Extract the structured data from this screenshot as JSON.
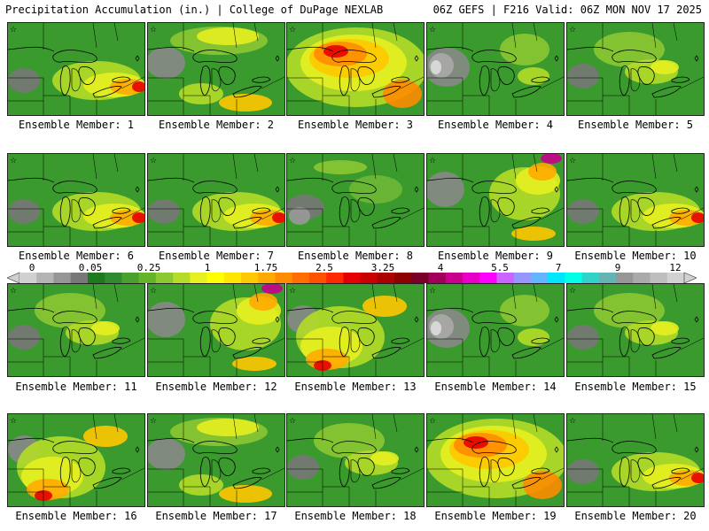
{
  "header": {
    "left": "Precipitation Accumulation (in.) | College of DuPage NEXLAB",
    "right": "06Z GEFS | F216 Valid: 06Z MON NOV 17 2025"
  },
  "panels": [
    {
      "label": "Ensemble Member: 1",
      "pattern": "wet_east"
    },
    {
      "label": "Ensemble Member: 2",
      "pattern": "moderate_north"
    },
    {
      "label": "Ensemble Member: 3",
      "pattern": "very_wet"
    },
    {
      "label": "Ensemble Member: 4",
      "pattern": "dry_west"
    },
    {
      "label": "Ensemble Member: 5",
      "pattern": "moderate"
    },
    {
      "label": "Ensemble Member: 6",
      "pattern": "wet_east"
    },
    {
      "label": "Ensemble Member: 7",
      "pattern": "wet_east"
    },
    {
      "label": "Ensemble Member: 8",
      "pattern": "dry"
    },
    {
      "label": "Ensemble Member: 9",
      "pattern": "wet_ne"
    },
    {
      "label": "Ensemble Member: 10",
      "pattern": "wet_east"
    },
    {
      "label": "Ensemble Member: 11",
      "pattern": "moderate"
    },
    {
      "label": "Ensemble Member: 12",
      "pattern": "wet_ne"
    },
    {
      "label": "Ensemble Member: 13",
      "pattern": "wet_sw"
    },
    {
      "label": "Ensemble Member: 14",
      "pattern": "dry_west"
    },
    {
      "label": "Ensemble Member: 15",
      "pattern": "moderate"
    },
    {
      "label": "Ensemble Member: 16",
      "pattern": "wet_sw"
    },
    {
      "label": "Ensemble Member: 17",
      "pattern": "moderate_north"
    },
    {
      "label": "Ensemble Member: 18",
      "pattern": "moderate"
    },
    {
      "label": "Ensemble Member: 19",
      "pattern": "very_wet"
    },
    {
      "label": "Ensemble Member: 20",
      "pattern": "wet_east"
    }
  ],
  "colorbar": {
    "labels": [
      "0",
      "0.05",
      "0.25",
      "1",
      "1.75",
      "2.5",
      "3.25",
      "4",
      "5.5",
      "7",
      "9",
      "12"
    ],
    "colors": [
      "#d0d0d0",
      "#b4b4b4",
      "#969696",
      "#787878",
      "#1e7a1e",
      "#2e8b2e",
      "#4aa02c",
      "#64b42a",
      "#8cc832",
      "#b4dc28",
      "#e6f020",
      "#ffff00",
      "#ffe600",
      "#ffc800",
      "#ffaa00",
      "#ff8c00",
      "#ff6e00",
      "#ff5000",
      "#ff2800",
      "#e60000",
      "#c80000",
      "#aa0000",
      "#8c0000",
      "#780028",
      "#a0005a",
      "#c8008c",
      "#e600c8",
      "#ff00ff",
      "#c864ff",
      "#9696ff",
      "#64b4ff",
      "#00e6ff",
      "#00ffe6",
      "#32d2c8",
      "#64b4b4",
      "#969696",
      "#aaaaaa",
      "#bebebe",
      "#d2d2d2"
    ]
  }
}
